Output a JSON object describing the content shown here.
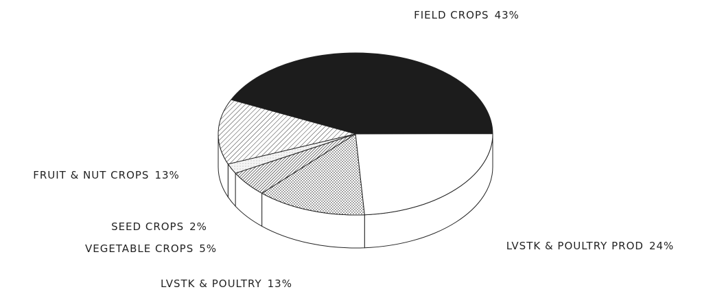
{
  "chart_data": {
    "type": "pie",
    "categories": [
      "FIELD CROPS",
      "LVSTK & POULTRY PROD",
      "LVSTK & POULTRY",
      "VEGETABLE CROPS",
      "SEED CROPS",
      "FRUIT & NUT CROPS"
    ],
    "values": [
      43,
      24,
      13,
      5,
      2,
      13
    ],
    "value_labels": [
      "43%",
      "24%",
      "13%",
      "5%",
      "2%",
      "13%"
    ]
  }
}
